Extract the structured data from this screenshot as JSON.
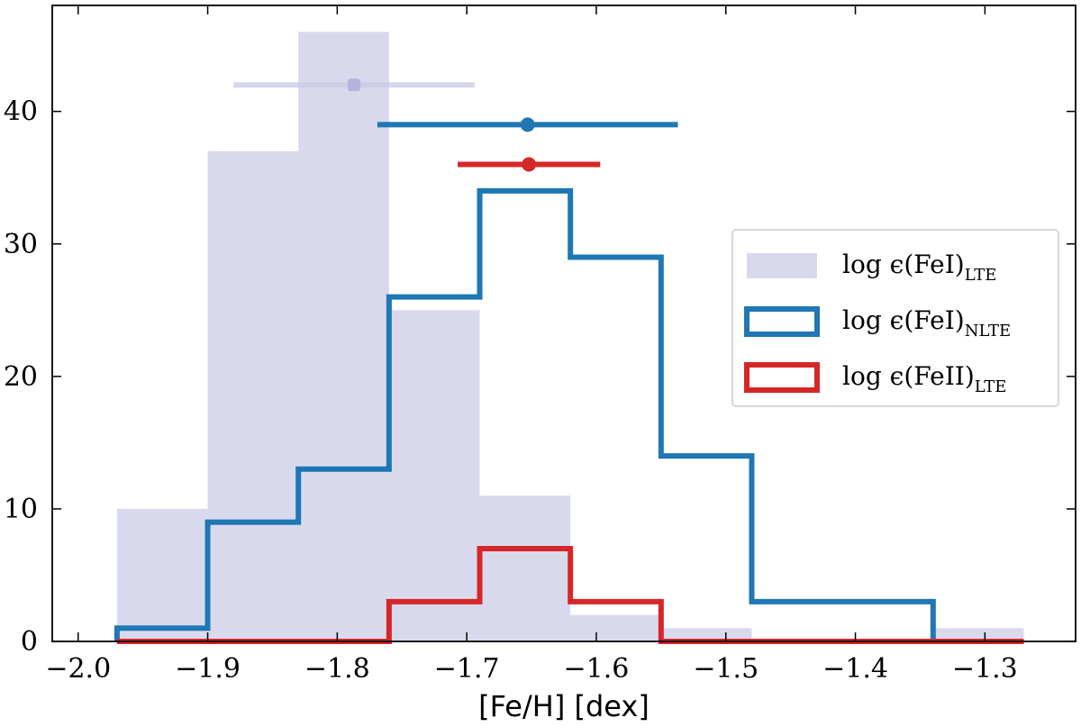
{
  "chart_data": {
    "type": "histogram",
    "title": "",
    "xlabel": "[Fe/H] [dex]",
    "ylabel": "",
    "xlim": [
      -2.02,
      -1.23
    ],
    "ylim": [
      0,
      48
    ],
    "x_ticks": [
      -2.0,
      -1.9,
      -1.8,
      -1.7,
      -1.6,
      -1.5,
      -1.4,
      -1.3
    ],
    "x_tick_labels": [
      "−2.0",
      "−1.9",
      "−1.8",
      "−1.7",
      "−1.6",
      "−1.5",
      "−1.4",
      "−1.3"
    ],
    "y_ticks": [
      0,
      10,
      20,
      30,
      40
    ],
    "y_tick_labels": [
      "0",
      "10",
      "20",
      "30",
      "40"
    ],
    "series": [
      {
        "name": "FeI LTE",
        "legend": {
          "main": "log ϵ(FeI)",
          "sub": "LTE"
        },
        "style": "filled",
        "color": "#d9d9ee",
        "bin_edges": [
          -1.97,
          -1.9,
          -1.83,
          -1.76,
          -1.69,
          -1.62,
          -1.55,
          -1.48,
          -1.41,
          -1.34,
          -1.27
        ],
        "counts": [
          10,
          37,
          46,
          25,
          11,
          2,
          1,
          0,
          0,
          1
        ]
      },
      {
        "name": "FeI NLTE",
        "legend": {
          "main": "log ϵ(FeI)",
          "sub": "NLTE"
        },
        "style": "step",
        "color": "#1f77b4",
        "bin_edges": [
          -1.97,
          -1.9,
          -1.83,
          -1.76,
          -1.69,
          -1.62,
          -1.55,
          -1.48,
          -1.41,
          -1.34
        ],
        "counts": [
          1,
          9,
          13,
          26,
          34,
          29,
          14,
          3,
          3
        ]
      },
      {
        "name": "FeII LTE",
        "legend": {
          "main": "log ϵ(FeII)",
          "sub": "LTE"
        },
        "style": "step",
        "color": "#d62728",
        "bin_edges": [
          -1.97,
          -1.9,
          -1.83,
          -1.76,
          -1.69,
          -1.62,
          -1.55,
          -1.48,
          -1.41,
          -1.34,
          -1.27
        ],
        "counts": [
          0,
          0,
          0,
          3,
          7,
          3,
          0,
          0,
          0,
          0
        ]
      }
    ],
    "error_bars": [
      {
        "series": "FeI LTE",
        "mean": -1.787,
        "xerr": 0.093,
        "y": 42,
        "color": "#c8c8e6"
      },
      {
        "series": "FeI NLTE",
        "mean": -1.653,
        "xerr": 0.116,
        "y": 39,
        "color": "#1f77b4"
      },
      {
        "series": "FeII LTE",
        "mean": -1.652,
        "xerr": 0.055,
        "y": 36,
        "color": "#d62728"
      }
    ],
    "legend_position": "center-right"
  }
}
